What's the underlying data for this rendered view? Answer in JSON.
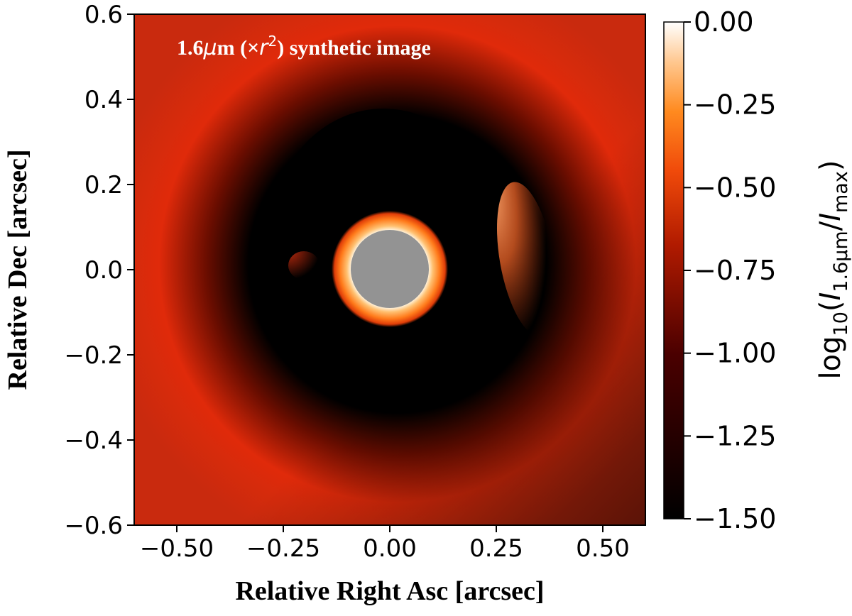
{
  "chart_data": {
    "type": "heatmap",
    "title": "1.6μm (×r²) synthetic image",
    "title_parts": {
      "prefix": "1.6",
      "mu": "μ",
      "m": "m (×",
      "r": "r",
      "sup": "2",
      "suffix": ") synthetic image"
    },
    "xlabel": "Relative Right Asc [arcsec]",
    "ylabel": "Relative Dec [arcsec]",
    "xlim": [
      -0.6,
      0.6
    ],
    "ylim": [
      -0.6,
      0.6
    ],
    "xticks": [
      -0.5,
      -0.25,
      0.0,
      0.25,
      0.5
    ],
    "xtick_labels": [
      "−0.50",
      "−0.25",
      "0.00",
      "0.25",
      "0.50"
    ],
    "yticks": [
      0.6,
      0.4,
      0.2,
      0.0,
      -0.2,
      -0.4,
      -0.6
    ],
    "ytick_labels": [
      "0.6",
      "0.4",
      "0.2",
      "0.0",
      "−0.2",
      "−0.4",
      "−0.6"
    ],
    "colorbar": {
      "label": "log10(I1.6μm/Imax)",
      "label_parts": {
        "log": "log",
        "log_sub": "10",
        "open": "(",
        "I1": "I",
        "I1_sub": "1.6μm",
        "slash": "/",
        "I2": "I",
        "I2_sub": "max",
        "close": ")"
      },
      "range": [
        -1.5,
        0.0
      ],
      "ticks": [
        0.0,
        -0.25,
        -0.5,
        -0.75,
        -1.0,
        -1.25,
        -1.5
      ],
      "tick_labels": [
        "0.00",
        "−0.25",
        "−0.50",
        "−0.75",
        "−1.00",
        "−1.25",
        "−1.50"
      ],
      "colormap": "gist_heat"
    },
    "features": {
      "coronagraph_mask": {
        "center": [
          0.0,
          0.0
        ],
        "radius_arcsec": 0.09,
        "color": "#939393"
      },
      "inner_ring_radius_arcsec": 0.13,
      "outer_ring_radius_arcsec": 0.38,
      "bright_arc_position": [
        0.3,
        -0.03
      ],
      "faint_clump_position": [
        -0.21,
        0.01
      ]
    }
  }
}
